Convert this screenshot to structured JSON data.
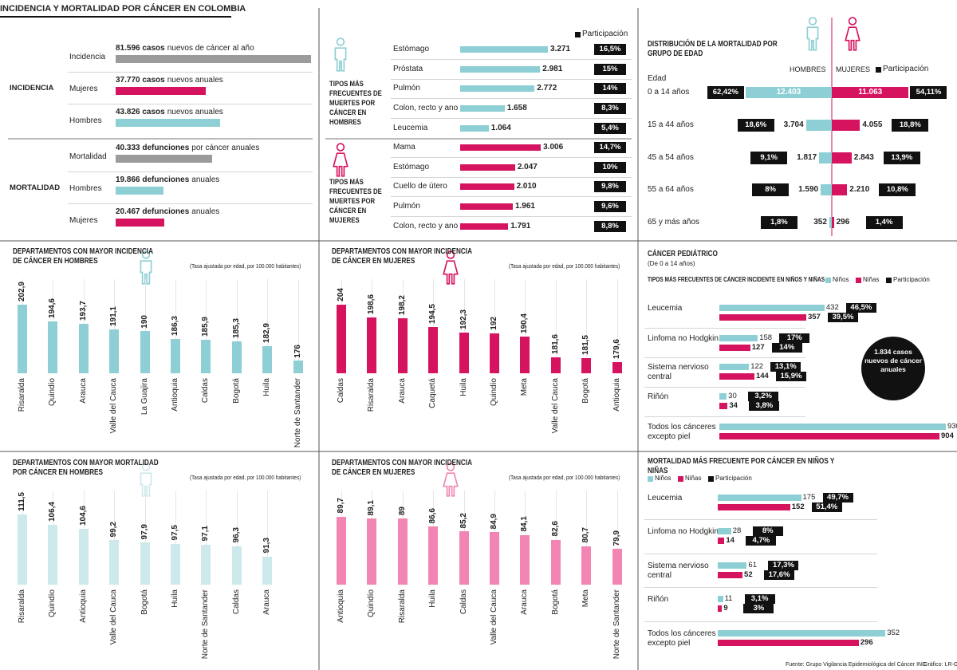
{
  "title": "INCIDENCIA Y MORTALIDAD POR CÁNCER EN COLOMBIA",
  "source": "Fuente: Grupo Vigilancia Epidemiológica del Cáncer INC",
  "credit": "Gráfico: LR-GR",
  "chart_data": [
    {
      "type": "bar-list",
      "xlim": [
        0,
        82000
      ],
      "groups": [
        {
          "name": "INCIDENCIA",
          "rows": [
            {
              "category": "Incidencia",
              "value": 81596,
              "value_label": "81.596 casos",
              "text": "nuevos de cáncer al año",
              "color": "#9b9b9b"
            },
            {
              "category": "Mujeres",
              "value": 37770,
              "value_label": "37.770 casos",
              "text": "nuevos anuales",
              "color": "#d6135f"
            },
            {
              "category": "Hombres",
              "value": 43826,
              "value_label": "43.826 casos",
              "text": "nuevos anuales",
              "color": "#8dcfd4"
            }
          ]
        },
        {
          "name": "MORTALIDAD",
          "rows": [
            {
              "category": "Mortalidad",
              "value": 40333,
              "value_label": "40.333 defunciones",
              "text": "por cáncer anuales",
              "color": "#9b9b9b"
            },
            {
              "category": "Hombres",
              "value": 19866,
              "value_label": "19.866 defunciones",
              "text": "anuales",
              "color": "#8dcfd4"
            },
            {
              "category": "Mujeres",
              "value": 20467,
              "value_label": "20.467 defunciones",
              "text": "anuales",
              "color": "#d6135f"
            }
          ]
        }
      ]
    },
    {
      "type": "bar-share",
      "label": "TIPOS MÁS FRECUENTES DE MUERTES POR CÁNCER EN HOMBRES",
      "legend": "Participación",
      "color": "#8dcfd4",
      "xlim": [
        0,
        3300
      ],
      "categories": [
        "Estómago",
        "Próstata",
        "Pulmón",
        "Colon, recto y ano",
        "Leucemia"
      ],
      "values": [
        3271,
        2981,
        2772,
        1658,
        1064
      ],
      "value_labels": [
        "3.271",
        "2.981",
        "2.772",
        "1.658",
        "1.064"
      ],
      "shares": [
        16.5,
        15,
        14,
        8.3,
        5.4
      ],
      "share_labels": [
        "16,5%",
        "15%",
        "14%",
        "8,3%",
        "5,4%"
      ]
    },
    {
      "type": "bar-share",
      "label": "TIPOS MÁS FRECUENTES DE MUERTES POR CÁNCER EN MUJERES",
      "color": "#d6135f",
      "xlim": [
        0,
        3300
      ],
      "categories": [
        "Mama",
        "Estómago",
        "Cuello de útero",
        "Pulmón",
        "Colon, recto y ano"
      ],
      "values": [
        3006,
        2047,
        2010,
        1961,
        1791
      ],
      "value_labels": [
        "3.006",
        "2.047",
        "2.010",
        "1.961",
        "1.791"
      ],
      "shares": [
        14.7,
        10,
        9.8,
        9.6,
        8.8
      ],
      "share_labels": [
        "14,7%",
        "10%",
        "9,8%",
        "9,6%",
        "8,8%"
      ]
    },
    {
      "type": "butterfly",
      "title": "DISTRIBUCIÓN DE LA MORTALIDAD POR GRUPO DE EDAD",
      "axis_label": "Edad",
      "legend": "Participación",
      "xlim": [
        0,
        12500
      ],
      "categories": [
        "0 a 14 años",
        "15 a 44 años",
        "45 a 54 años",
        "55 a 64 años",
        "65 y más años"
      ],
      "series": [
        {
          "name": "HOMBRES",
          "color": "#8dcfd4",
          "values": [
            12403,
            3704,
            1817,
            1590,
            352
          ],
          "value_labels": [
            "12.403",
            "3.704",
            "1.817",
            "1.590",
            "352"
          ],
          "shares": [
            62.42,
            18.6,
            9.1,
            8,
            1.8
          ],
          "share_labels": [
            "62,42%",
            "18,6%",
            "9,1%",
            "8%",
            "1,8%"
          ]
        },
        {
          "name": "MUJERES",
          "color": "#d6135f",
          "values": [
            11063,
            4055,
            2843,
            2210,
            296
          ],
          "value_labels": [
            "11.063",
            "4.055",
            "2.843",
            "2.210",
            "296"
          ],
          "shares": [
            54.11,
            18.8,
            13.9,
            10.8,
            1.4
          ],
          "share_labels": [
            "54,11%",
            "18,8%",
            "13,9%",
            "10,8%",
            "1,4%"
          ]
        }
      ]
    },
    {
      "type": "column",
      "title": "DEPARTAMENTOS CON MAYOR INCIDENCIA DE CÁNCER EN HOMBRES",
      "subtitle": "(Tasa ajustada por edad, por 100.000 habitantes)",
      "color": "#8dcfd4",
      "ylim": [
        170,
        205
      ],
      "categories": [
        "Risaralda",
        "Quindío",
        "Arauca",
        "Valle del Cauca",
        "La Guajira",
        "Antioquia",
        "Caldas",
        "Bogotá",
        "Huila",
        "Norte de Santander"
      ],
      "values": [
        202.9,
        194.6,
        193.7,
        191.1,
        190,
        186.3,
        185.9,
        185.3,
        182.9,
        176
      ],
      "value_labels": [
        "202,9",
        "194,6",
        "193,7",
        "191,1",
        "190",
        "186,3",
        "185,9",
        "185,3",
        "182,9",
        "176"
      ]
    },
    {
      "type": "column",
      "title": "DEPARTAMENTOS CON MAYOR INCIDENCIA DE CÁNCER EN MUJERES",
      "subtitle": "(Tasa ajustada por edad, por 100.000 habitantes)",
      "color": "#d6135f",
      "ylim": [
        175,
        206
      ],
      "categories": [
        "Caldas",
        "Risaralda",
        "Arauca",
        "Caquetá",
        "Huila",
        "Quindío",
        "Meta",
        "Valle del Cauca",
        "Bogotá",
        "Antioquia"
      ],
      "values": [
        204,
        198.6,
        198.2,
        194.5,
        192.3,
        192,
        190.4,
        181.6,
        181.5,
        179.6
      ],
      "value_labels": [
        "204",
        "198,6",
        "198,2",
        "194,5",
        "192,3",
        "192",
        "190,4",
        "181,6",
        "181,5",
        "179,6"
      ]
    },
    {
      "type": "column",
      "title": "DEPARTAMENTOS CON MAYOR MORTALIDAD POR CÁNCER EN HOMBRES",
      "subtitle": "(Tasa ajustada por edad, por 100.000 habitantes)",
      "color": "#cde9ec",
      "ylim": [
        78,
        114
      ],
      "categories": [
        "Risaralda",
        "Quindío",
        "Antioquia",
        "Valle del Cauca",
        "Bogotá",
        "Huila",
        "Norte de Santander",
        "Caldas",
        "Arauca"
      ],
      "values": [
        111.5,
        106.4,
        104.6,
        99.2,
        97.9,
        97.5,
        97.1,
        96.3,
        91.3
      ],
      "value_labels": [
        "111,5",
        "106,4",
        "104,6",
        "99,2",
        "97,9",
        "97,5",
        "97,1",
        "96,3",
        "91,3"
      ]
    },
    {
      "type": "column",
      "title": "DEPARTAMENTOS CON MAYOR INCIDENCIA DE CÁNCER EN MUJERES",
      "subtitle": "(Tasa ajustada por edad, por 100.000 habitantes)",
      "color": "#f285b3",
      "ylim": [
        69,
        92
      ],
      "categories": [
        "Antioquia",
        "Quindío",
        "Risaralda",
        "Huila",
        "Caldas",
        "Valle del Cauca",
        "Arauca",
        "Bogotá",
        "Meta",
        "Norte de Santander"
      ],
      "values": [
        89.7,
        89.1,
        89,
        86.6,
        85.2,
        84.9,
        84.1,
        82.6,
        80.7,
        79.9
      ],
      "value_labels": [
        "89,7",
        "89,1",
        "89",
        "86,6",
        "85,2",
        "84,9",
        "84,1",
        "82,6",
        "80,7",
        "79,9"
      ]
    },
    {
      "type": "bar-pair",
      "title": "CÁNCER PEDIÁTRICO",
      "subtitle": "(De 0 a 14 años)",
      "label": "TIPOS MÁS FRECUENTES DE CÁNCER INCIDENTE EN NIÑOS Y NIÑAS",
      "legend": "Participación",
      "callout": "1.834 casos nuevos de cáncer anuales",
      "xlim": [
        0,
        940
      ],
      "categories": [
        "Leucemia",
        "Linfoma no Hodgkin",
        "Sistema nervioso central",
        "Riñón",
        "Todos los cánceres excepto piel"
      ],
      "series": [
        {
          "name": "Niños",
          "color": "#8dcfd4",
          "values": [
            432,
            158,
            122,
            30,
            930
          ],
          "shares": [
            46.5,
            17,
            13.1,
            3.2,
            null
          ],
          "share_labels": [
            "46,5%",
            "17%",
            "13,1%",
            "3,2%",
            null
          ]
        },
        {
          "name": "Niñas",
          "color": "#d6135f",
          "values": [
            357,
            127,
            144,
            34,
            904
          ],
          "shares": [
            39.5,
            14,
            15.9,
            3.8,
            null
          ],
          "share_labels": [
            "39,5%",
            "14%",
            "15,9%",
            "3,8%",
            null
          ]
        }
      ]
    },
    {
      "type": "bar-pair",
      "title": "MORTALIDAD MÁS FRECUENTE POR CÁNCER EN NIÑOS Y NIÑAS",
      "legend": "Participación",
      "xlim": [
        0,
        355
      ],
      "categories": [
        "Leucemia",
        "Linfoma no Hodgkin",
        "Sistema nervioso central",
        "Riñón",
        "Todos los cánceres excepto piel"
      ],
      "series": [
        {
          "name": "Niños",
          "color": "#8dcfd4",
          "values": [
            175,
            28,
            61,
            11,
            352
          ],
          "shares": [
            49.7,
            8,
            17.3,
            3.1,
            null
          ],
          "share_labels": [
            "49,7%",
            "8%",
            "17,3%",
            "3,1%",
            null
          ]
        },
        {
          "name": "Niñas",
          "color": "#d6135f",
          "values": [
            152,
            14,
            52,
            9,
            296
          ],
          "shares": [
            51.4,
            4.7,
            17.6,
            3,
            null
          ],
          "share_labels": [
            "51,4%",
            "4,7%",
            "17,6%",
            "3%",
            null
          ]
        }
      ]
    }
  ]
}
